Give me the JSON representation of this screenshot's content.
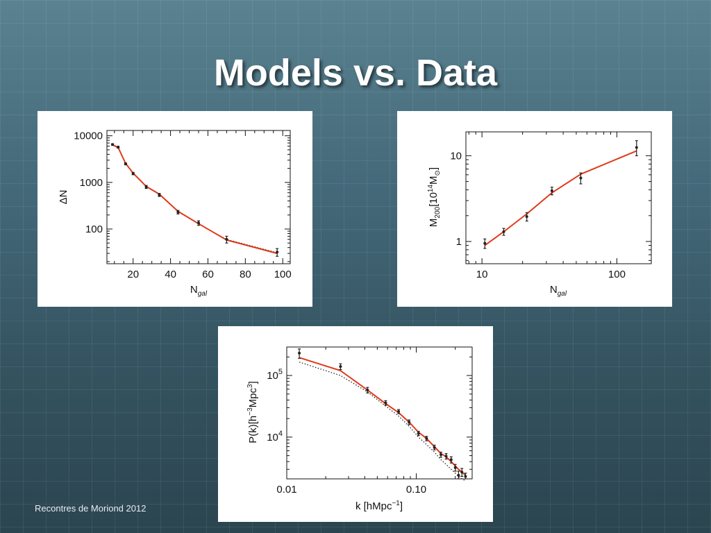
{
  "slide": {
    "title": "Models vs. Data",
    "footer": "Recontres de Moriond 2012"
  },
  "colors": {
    "model_line": "#e03a1a",
    "data_points": "#222222",
    "alt_model": "#111111"
  },
  "chart_data": [
    {
      "id": "abundance",
      "type": "scatter",
      "xscale": "linear",
      "yscale": "log",
      "xlim": [
        6,
        104
      ],
      "ylim": [
        18,
        13000
      ],
      "xticks": [
        20,
        40,
        60,
        80,
        100
      ],
      "xtick_labels": [
        "20",
        "40",
        "60",
        "80",
        "100"
      ],
      "yticks": [
        100,
        1000,
        10000
      ],
      "ytick_labels": [
        "100",
        "1000",
        "10000"
      ],
      "xlabel": "N",
      "xlabel_sub": "gal",
      "ylabel": "ΔN",
      "points": [
        {
          "x": 9,
          "y": 6500,
          "err": 250
        },
        {
          "x": 12,
          "y": 5700,
          "err": 250
        },
        {
          "x": 16,
          "y": 2500,
          "err": 120
        },
        {
          "x": 20,
          "y": 1550,
          "err": 90
        },
        {
          "x": 27,
          "y": 800,
          "err": 60
        },
        {
          "x": 34,
          "y": 540,
          "err": 40
        },
        {
          "x": 44,
          "y": 230,
          "err": 20
        },
        {
          "x": 55,
          "y": 135,
          "err": 15
        },
        {
          "x": 70,
          "y": 60,
          "err": 10
        },
        {
          "x": 97,
          "y": 32,
          "err": 6
        }
      ],
      "model": {
        "x": [
          9,
          12,
          16,
          20,
          27,
          34,
          44,
          55,
          70,
          97
        ],
        "y": [
          6400,
          5600,
          2550,
          1580,
          820,
          560,
          240,
          130,
          58,
          30
        ]
      },
      "model_dotted": {
        "x": [
          9,
          12,
          16,
          20,
          27,
          34,
          44,
          55,
          70,
          97
        ],
        "y": [
          6450,
          5650,
          2520,
          1560,
          810,
          550,
          235,
          128,
          60,
          31
        ]
      }
    },
    {
      "id": "mass",
      "type": "scatter",
      "xscale": "log",
      "yscale": "log",
      "xlim": [
        7.6,
        180
      ],
      "ylim": [
        0.55,
        19
      ],
      "xticks": [
        10,
        100
      ],
      "xtick_labels": [
        "10",
        "100"
      ],
      "yticks": [
        1,
        10
      ],
      "ytick_labels": [
        "1",
        "10"
      ],
      "xlabel": "N",
      "xlabel_sub": "gal",
      "ylabel": "M",
      "ylabel_sub": "200",
      "ylabel_rest": "[10",
      "ylabel_sup": "14",
      "ylabel_unit": "M",
      "ylabel_unit_sub": "⊙",
      "ylabel_close": "]",
      "points": [
        {
          "x": 10.5,
          "y": 0.95,
          "err": 0.12
        },
        {
          "x": 14.5,
          "y": 1.3,
          "err": 0.12
        },
        {
          "x": 21.5,
          "y": 1.95,
          "err": 0.22
        },
        {
          "x": 33,
          "y": 3.9,
          "err": 0.4
        },
        {
          "x": 54,
          "y": 5.5,
          "err": 0.8
        },
        {
          "x": 140,
          "y": 12.5,
          "err": 2.5
        }
      ],
      "model": {
        "x": [
          10.5,
          14.5,
          21.5,
          33,
          54,
          140
        ],
        "y": [
          0.9,
          1.3,
          2.1,
          3.7,
          6.1,
          11.4
        ]
      }
    },
    {
      "id": "power",
      "type": "scatter",
      "xscale": "log",
      "yscale": "log",
      "xlim": [
        0.01,
        0.27
      ],
      "ylim": [
        2100,
        290000
      ],
      "xticks": [
        0.01,
        0.1
      ],
      "xtick_labels": [
        "0.01",
        "0.10"
      ],
      "yticks": [
        10000,
        100000
      ],
      "ytick_labels": [
        {
          "base": "10",
          "exp": "4"
        },
        {
          "base": "10",
          "exp": "5"
        }
      ],
      "xlabel": "k",
      "xlabel_unit": "[hMpc",
      "xlabel_sup": "−1",
      "xlabel_close": "]",
      "ylabel": "P(k)[h",
      "ylabel_sup1": "−3",
      "ylabel_mid": "Mpc",
      "ylabel_sup2": "3",
      "ylabel_close": "]",
      "points": [
        {
          "x": 0.0125,
          "y": 230000,
          "err": 40000
        },
        {
          "x": 0.026,
          "y": 140000,
          "err": 15000
        },
        {
          "x": 0.042,
          "y": 58000,
          "err": 6000
        },
        {
          "x": 0.058,
          "y": 36000,
          "err": 3000
        },
        {
          "x": 0.073,
          "y": 26000,
          "err": 2000
        },
        {
          "x": 0.088,
          "y": 17500,
          "err": 1500
        },
        {
          "x": 0.104,
          "y": 11500,
          "err": 900
        },
        {
          "x": 0.12,
          "y": 9500,
          "err": 800
        },
        {
          "x": 0.138,
          "y": 6800,
          "err": 600
        },
        {
          "x": 0.155,
          "y": 5200,
          "err": 500
        },
        {
          "x": 0.17,
          "y": 4900,
          "err": 500
        },
        {
          "x": 0.186,
          "y": 4300,
          "err": 500
        },
        {
          "x": 0.2,
          "y": 3200,
          "err": 400
        },
        {
          "x": 0.212,
          "y": 2400,
          "err": 400
        },
        {
          "x": 0.225,
          "y": 2700,
          "err": 400
        },
        {
          "x": 0.24,
          "y": 2300,
          "err": 300
        }
      ],
      "model": {
        "x": [
          0.0125,
          0.026,
          0.042,
          0.058,
          0.073,
          0.088,
          0.104,
          0.12,
          0.138,
          0.155,
          0.17,
          0.186,
          0.2,
          0.212,
          0.225,
          0.24
        ],
        "y": [
          195000,
          120000,
          58000,
          35000,
          25000,
          17500,
          12000,
          9500,
          7000,
          5400,
          4800,
          4000,
          3400,
          3000,
          2700,
          2400
        ]
      },
      "model_dotted": {
        "x": [
          0.0125,
          0.026,
          0.042,
          0.058,
          0.073,
          0.088,
          0.104,
          0.12,
          0.138,
          0.155,
          0.17,
          0.186,
          0.2,
          0.212,
          0.225,
          0.24
        ],
        "y": [
          165000,
          100000,
          54000,
          32000,
          22000,
          15000,
          10000,
          7600,
          5700,
          4300,
          3600,
          3000,
          2600,
          2300,
          2100,
          1950
        ]
      }
    }
  ]
}
